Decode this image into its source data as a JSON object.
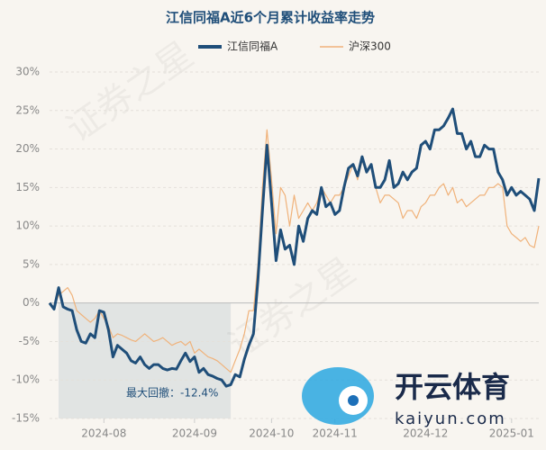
{
  "chart_data": {
    "type": "line",
    "title": "江信同福A近6个月累计收益率走势",
    "annotation": "最大回撤：-12.4%",
    "watermark": "证券之星",
    "logo": {
      "name": "开云体育",
      "site": "kaiyun.com"
    },
    "categories": [
      null,
      null,
      null,
      null,
      null,
      null,
      null,
      null,
      null,
      null,
      null,
      null,
      "2024-08",
      null,
      null,
      null,
      null,
      null,
      null,
      null,
      null,
      null,
      null,
      null,
      null,
      null,
      null,
      null,
      null,
      null,
      null,
      null,
      "2024-09",
      null,
      null,
      null,
      null,
      null,
      null,
      null,
      null,
      null,
      null,
      null,
      null,
      null,
      null,
      null,
      null,
      "2024-10",
      null,
      null,
      null,
      null,
      null,
      null,
      null,
      null,
      null,
      null,
      null,
      null,
      null,
      "2024-11",
      null,
      null,
      null,
      null,
      null,
      null,
      null,
      null,
      null,
      null,
      null,
      null,
      null,
      null,
      null,
      null,
      null,
      null,
      null,
      "2024-12",
      null,
      null,
      null,
      null,
      null,
      null,
      null,
      null,
      null,
      null,
      null,
      null,
      null,
      null,
      null,
      null,
      null,
      null,
      "2025-01",
      null,
      null,
      null,
      null,
      null,
      null
    ],
    "series": [
      {
        "name": "江信同福A",
        "color": "#1f4e79",
        "values": [
          0,
          -0.8,
          2,
          -0.5,
          -0.8,
          -1,
          -3.5,
          -5,
          -5.2,
          -4,
          -4.5,
          -1,
          -1.2,
          -3.5,
          -7,
          -5.5,
          -6,
          -6.5,
          -7.5,
          -7.8,
          -7,
          -8,
          -8.5,
          -8,
          -8,
          -8.5,
          -8.7,
          -8.5,
          -8.6,
          -7.5,
          -6.5,
          -7.6,
          -7,
          -9,
          -8.5,
          -9.3,
          -9.5,
          -9.8,
          -10,
          -10.8,
          -10.6,
          -9.3,
          -9.6,
          -7.3,
          -5.5,
          -4,
          3,
          12,
          20.5,
          13,
          5.5,
          9.5,
          7,
          7.5,
          5,
          10,
          8,
          11,
          12,
          11.5,
          15,
          12.5,
          13,
          11.5,
          12,
          15,
          17.5,
          18,
          16.5,
          19,
          17,
          18,
          15,
          15,
          16,
          18.5,
          15,
          15.5,
          17,
          16,
          17,
          17.5,
          20.5,
          21,
          20,
          22.5,
          22.5,
          23,
          24,
          25.2,
          22,
          22,
          20,
          21,
          19,
          19,
          20.5,
          20,
          20,
          17,
          16,
          14,
          15,
          14,
          14.5,
          14,
          13.5,
          12,
          16.2
        ]
      },
      {
        "name": "沪深300",
        "color": "#f0b27a",
        "values": [
          0,
          -0.5,
          1,
          1.5,
          2,
          1,
          -1,
          -1.5,
          -2,
          -2.5,
          -2,
          -1,
          -2,
          -3,
          -4.5,
          -4,
          -4.2,
          -4.5,
          -4.8,
          -5,
          -4.5,
          -4,
          -4.5,
          -5,
          -4.8,
          -4.5,
          -5,
          -5.5,
          -5.2,
          -5,
          -5.5,
          -5,
          -6.5,
          -6,
          -6.5,
          -7,
          -7.2,
          -7.5,
          -8,
          -8.5,
          -9,
          -7.5,
          -6,
          -4,
          -1,
          -1,
          5,
          15,
          22.5,
          16,
          9,
          15,
          14,
          10,
          14,
          11,
          12,
          13,
          12,
          13,
          15,
          14,
          13,
          14,
          14,
          15,
          16.5,
          18,
          16,
          18.5,
          17,
          18,
          15,
          13,
          14,
          14,
          13.5,
          13,
          11,
          12,
          12,
          11,
          12.5,
          13,
          14,
          14,
          15,
          15.5,
          14,
          15,
          13,
          13.5,
          12.5,
          13,
          13.5,
          14,
          14,
          15,
          15,
          15.5,
          15,
          10,
          9,
          8.5,
          8,
          8.5,
          7.5,
          7.2,
          10
        ]
      }
    ],
    "ylim": [
      -15,
      30
    ],
    "yticks": [
      {
        "value": -15,
        "label": "-15%"
      },
      {
        "value": -10,
        "label": "-10%"
      },
      {
        "value": -5,
        "label": "-5%"
      },
      {
        "value": 0,
        "label": "0%"
      },
      {
        "value": 5,
        "label": "5%"
      },
      {
        "value": 10,
        "label": "10%"
      },
      {
        "value": 15,
        "label": "15%"
      },
      {
        "value": 20,
        "label": "20%"
      },
      {
        "value": 25,
        "label": "25%"
      },
      {
        "value": 30,
        "label": "30%"
      }
    ],
    "grid": true
  }
}
